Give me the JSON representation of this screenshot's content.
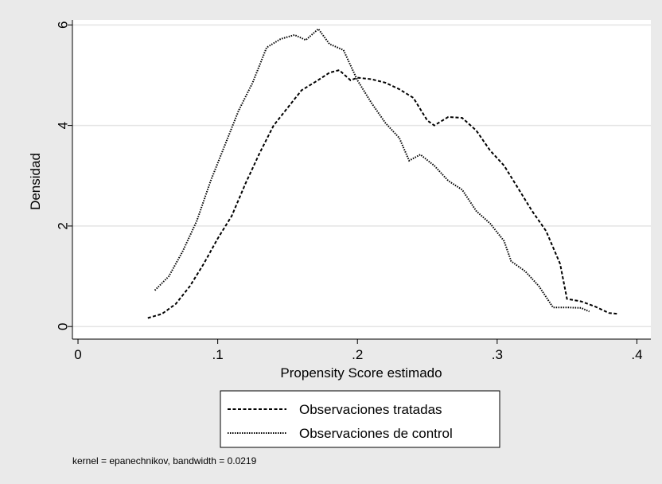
{
  "chart_data": {
    "type": "line",
    "xlabel": "Propensity Score estimado",
    "ylabel": "Densidad",
    "xlim": [
      -0.004,
      0.41
    ],
    "ylim": [
      -0.25,
      6.1
    ],
    "grid": true,
    "legend_position": "bottom",
    "x_ticks": [
      {
        "value": 0,
        "label": "0"
      },
      {
        "value": 0.1,
        "label": ".1"
      },
      {
        "value": 0.2,
        "label": ".2"
      },
      {
        "value": 0.3,
        "label": ".3"
      },
      {
        "value": 0.4,
        "label": ".4"
      }
    ],
    "y_ticks": [
      {
        "value": 0,
        "label": "0"
      },
      {
        "value": 2,
        "label": "2"
      },
      {
        "value": 4,
        "label": "4"
      },
      {
        "value": 6,
        "label": "6"
      }
    ],
    "series": [
      {
        "name": "Observaciones tratadas",
        "style": "dashed",
        "points": [
          [
            0.05,
            0.17
          ],
          [
            0.06,
            0.25
          ],
          [
            0.07,
            0.45
          ],
          [
            0.08,
            0.8
          ],
          [
            0.09,
            1.25
          ],
          [
            0.1,
            1.75
          ],
          [
            0.11,
            2.2
          ],
          [
            0.12,
            2.85
          ],
          [
            0.13,
            3.45
          ],
          [
            0.14,
            4.0
          ],
          [
            0.15,
            4.35
          ],
          [
            0.16,
            4.7
          ],
          [
            0.17,
            4.87
          ],
          [
            0.18,
            5.05
          ],
          [
            0.187,
            5.1
          ],
          [
            0.195,
            4.9
          ],
          [
            0.2,
            4.95
          ],
          [
            0.21,
            4.92
          ],
          [
            0.22,
            4.85
          ],
          [
            0.23,
            4.72
          ],
          [
            0.24,
            4.55
          ],
          [
            0.25,
            4.1
          ],
          [
            0.255,
            4.0
          ],
          [
            0.265,
            4.17
          ],
          [
            0.275,
            4.15
          ],
          [
            0.285,
            3.9
          ],
          [
            0.295,
            3.5
          ],
          [
            0.305,
            3.2
          ],
          [
            0.315,
            2.75
          ],
          [
            0.325,
            2.3
          ],
          [
            0.335,
            1.9
          ],
          [
            0.345,
            1.25
          ],
          [
            0.35,
            0.55
          ],
          [
            0.36,
            0.5
          ],
          [
            0.37,
            0.4
          ],
          [
            0.38,
            0.27
          ],
          [
            0.387,
            0.25
          ]
        ]
      },
      {
        "name": "Observaciones de control",
        "style": "dotted",
        "points": [
          [
            0.055,
            0.72
          ],
          [
            0.065,
            1.0
          ],
          [
            0.075,
            1.5
          ],
          [
            0.085,
            2.1
          ],
          [
            0.095,
            2.9
          ],
          [
            0.105,
            3.6
          ],
          [
            0.115,
            4.3
          ],
          [
            0.125,
            4.85
          ],
          [
            0.135,
            5.55
          ],
          [
            0.145,
            5.72
          ],
          [
            0.155,
            5.8
          ],
          [
            0.163,
            5.7
          ],
          [
            0.172,
            5.92
          ],
          [
            0.18,
            5.62
          ],
          [
            0.19,
            5.5
          ],
          [
            0.2,
            4.9
          ],
          [
            0.21,
            4.45
          ],
          [
            0.22,
            4.05
          ],
          [
            0.23,
            3.75
          ],
          [
            0.237,
            3.3
          ],
          [
            0.245,
            3.42
          ],
          [
            0.255,
            3.2
          ],
          [
            0.265,
            2.9
          ],
          [
            0.275,
            2.72
          ],
          [
            0.285,
            2.3
          ],
          [
            0.295,
            2.05
          ],
          [
            0.305,
            1.7
          ],
          [
            0.31,
            1.3
          ],
          [
            0.32,
            1.1
          ],
          [
            0.33,
            0.8
          ],
          [
            0.34,
            0.38
          ],
          [
            0.35,
            0.38
          ],
          [
            0.36,
            0.37
          ],
          [
            0.366,
            0.3
          ]
        ]
      }
    ]
  },
  "note": "kernel = epanechnikov, bandwidth = 0.0219"
}
